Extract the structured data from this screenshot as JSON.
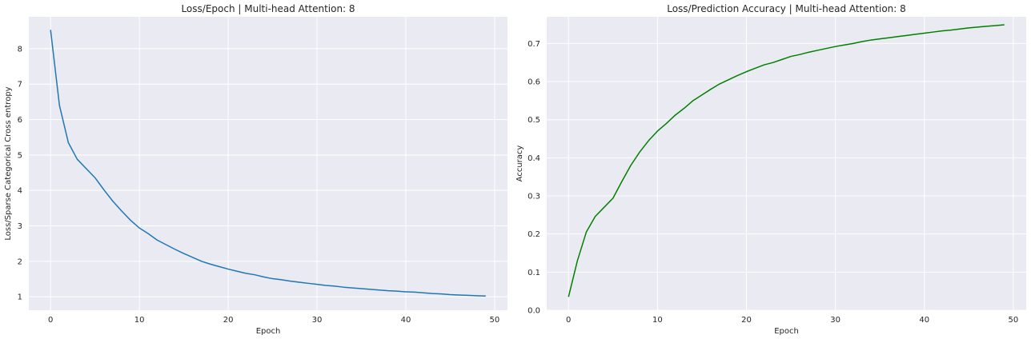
{
  "chart_data": [
    {
      "type": "line",
      "title": "Loss/Epoch | Multi-head Attention: 8",
      "xlabel": "Epoch",
      "ylabel": "Loss/Sparse Categorical Cross entropy",
      "xlim": [
        -2.45,
        51.45
      ],
      "ylim": [
        0.62,
        8.9
      ],
      "xticks": [
        0,
        10,
        20,
        30,
        40,
        50
      ],
      "yticks": [
        1,
        2,
        3,
        4,
        5,
        6,
        7,
        8
      ],
      "xtick_labels": [
        "0",
        "10",
        "20",
        "30",
        "40",
        "50"
      ],
      "ytick_labels": [
        "1",
        "2",
        "3",
        "4",
        "5",
        "6",
        "7",
        "8"
      ],
      "grid": true,
      "color": "#1f77b4",
      "x": [
        0,
        1,
        2,
        3,
        4,
        5,
        6,
        7,
        8,
        9,
        10,
        11,
        12,
        13,
        14,
        15,
        16,
        17,
        18,
        19,
        20,
        21,
        22,
        23,
        24,
        25,
        26,
        27,
        28,
        29,
        30,
        31,
        32,
        33,
        34,
        35,
        36,
        37,
        38,
        39,
        40,
        41,
        42,
        43,
        44,
        45,
        46,
        47,
        48,
        49
      ],
      "y": [
        8.53,
        6.4,
        5.35,
        4.88,
        4.62,
        4.36,
        4.02,
        3.7,
        3.42,
        3.16,
        2.94,
        2.78,
        2.6,
        2.47,
        2.34,
        2.22,
        2.11,
        2.0,
        1.92,
        1.85,
        1.78,
        1.72,
        1.66,
        1.62,
        1.56,
        1.51,
        1.48,
        1.44,
        1.41,
        1.38,
        1.35,
        1.32,
        1.3,
        1.27,
        1.25,
        1.23,
        1.21,
        1.19,
        1.17,
        1.16,
        1.14,
        1.13,
        1.11,
        1.09,
        1.08,
        1.06,
        1.05,
        1.04,
        1.03,
        1.02
      ]
    },
    {
      "type": "line",
      "title": "Loss/Prediction Accuracy | Multi-head Attention: 8",
      "xlabel": "Epoch",
      "ylabel": "Accuracy",
      "xlim": [
        -2.45,
        51.45
      ],
      "ylim": [
        0.0,
        0.77
      ],
      "xticks": [
        0,
        10,
        20,
        30,
        40,
        50
      ],
      "yticks": [
        0.0,
        0.1,
        0.2,
        0.3,
        0.4,
        0.5,
        0.6,
        0.7
      ],
      "xtick_labels": [
        "0",
        "10",
        "20",
        "30",
        "40",
        "50"
      ],
      "ytick_labels": [
        "0.0",
        "0.1",
        "0.2",
        "0.3",
        "0.4",
        "0.5",
        "0.6",
        "0.7"
      ],
      "grid": true,
      "color": "#008000",
      "x": [
        0,
        1,
        2,
        3,
        4,
        5,
        6,
        7,
        8,
        9,
        10,
        11,
        12,
        13,
        14,
        15,
        16,
        17,
        18,
        19,
        20,
        21,
        22,
        23,
        24,
        25,
        26,
        27,
        28,
        29,
        30,
        31,
        32,
        33,
        34,
        35,
        36,
        37,
        38,
        39,
        40,
        41,
        42,
        43,
        44,
        45,
        46,
        47,
        48,
        49
      ],
      "y": [
        0.035,
        0.13,
        0.205,
        0.246,
        0.27,
        0.294,
        0.338,
        0.38,
        0.415,
        0.445,
        0.47,
        0.49,
        0.512,
        0.53,
        0.55,
        0.565,
        0.58,
        0.594,
        0.605,
        0.616,
        0.626,
        0.635,
        0.644,
        0.65,
        0.658,
        0.666,
        0.671,
        0.677,
        0.682,
        0.687,
        0.692,
        0.696,
        0.7,
        0.705,
        0.709,
        0.712,
        0.715,
        0.718,
        0.721,
        0.724,
        0.727,
        0.73,
        0.733,
        0.735,
        0.738,
        0.741,
        0.743,
        0.745,
        0.747,
        0.749
      ]
    }
  ]
}
